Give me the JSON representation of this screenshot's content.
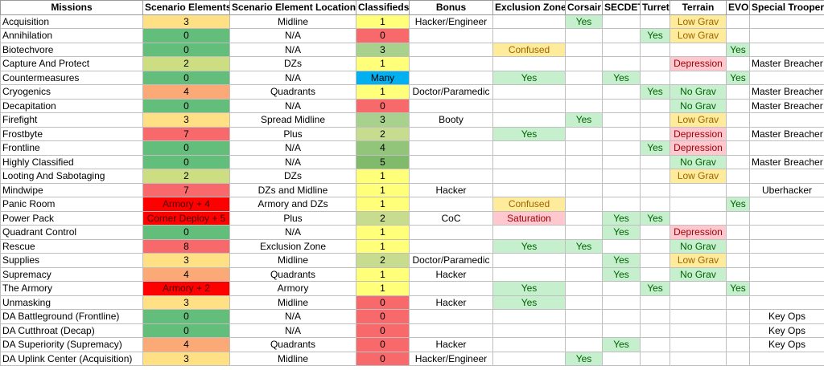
{
  "table": {
    "headers": [
      "Missions",
      "Scenario Elements",
      "Scenario Element Locations",
      "Classifieds",
      "Bonus",
      "Exclusion Zone",
      "Corsair",
      "SECDET",
      "Turret",
      "Terrain",
      "EVO",
      "Special Trooper"
    ],
    "rows": [
      [
        "Acquisition",
        "3",
        "Midline",
        "1",
        "Hacker/Engineer",
        "",
        "Yes",
        "",
        "",
        "Low Grav",
        "",
        ""
      ],
      [
        "Annihilation",
        "0",
        "N/A",
        "0",
        "",
        "",
        "",
        "",
        "Yes",
        "Low Grav",
        "",
        ""
      ],
      [
        "Biotechvore",
        "0",
        "N/A",
        "3",
        "",
        "Confused",
        "",
        "",
        "",
        "",
        "Yes",
        ""
      ],
      [
        "Capture And Protect",
        "2",
        "DZs",
        "1",
        "",
        "",
        "",
        "",
        "",
        "Depression",
        "",
        "Master Breacher"
      ],
      [
        "Countermeasures",
        "0",
        "N/A",
        "Many",
        "",
        "Yes",
        "",
        "Yes",
        "",
        "",
        "Yes",
        ""
      ],
      [
        "Cryogenics",
        "4",
        "Quadrants",
        "1",
        "Doctor/Paramedic",
        "",
        "",
        "",
        "Yes",
        "No Grav",
        "",
        "Master Breacher"
      ],
      [
        "Decapitation",
        "0",
        "N/A",
        "0",
        "",
        "",
        "",
        "",
        "",
        "No Grav",
        "",
        "Master Breacher"
      ],
      [
        "Firefight",
        "3",
        "Spread Midline",
        "3",
        "Booty",
        "",
        "Yes",
        "",
        "",
        "Low Grav",
        "",
        ""
      ],
      [
        "Frostbyte",
        "7",
        "Plus",
        "2",
        "",
        "Yes",
        "",
        "",
        "",
        "Depression",
        "",
        "Master Breacher"
      ],
      [
        "Frontline",
        "0",
        "N/A",
        "4",
        "",
        "",
        "",
        "",
        "Yes",
        "Depression",
        "",
        ""
      ],
      [
        "Highly Classified",
        "0",
        "N/A",
        "5",
        "",
        "",
        "",
        "",
        "",
        "No Grav",
        "",
        "Master Breacher"
      ],
      [
        "Looting And Sabotaging",
        "2",
        "DZs",
        "1",
        "",
        "",
        "",
        "",
        "",
        "Low Grav",
        "",
        ""
      ],
      [
        "Mindwipe",
        "7",
        "DZs and Midline",
        "1",
        "Hacker",
        "",
        "",
        "",
        "",
        "",
        "",
        "Uberhacker"
      ],
      [
        "Panic Room",
        "Armory + 4",
        "Armory and DZs",
        "1",
        "",
        "Confused",
        "",
        "",
        "",
        "",
        "Yes",
        ""
      ],
      [
        "Power Pack",
        "Corner Deploy + 5",
        "Plus",
        "2",
        "CoC",
        "Saturation",
        "",
        "Yes",
        "Yes",
        "",
        "",
        ""
      ],
      [
        "Quadrant Control",
        "0",
        "N/A",
        "1",
        "",
        "",
        "",
        "Yes",
        "",
        "Depression",
        "",
        ""
      ],
      [
        "Rescue",
        "8",
        "Exclusion Zone",
        "1",
        "",
        "Yes",
        "Yes",
        "",
        "",
        "No Grav",
        "",
        ""
      ],
      [
        "Supplies",
        "3",
        "Midline",
        "2",
        "Doctor/Paramedic",
        "",
        "",
        "Yes",
        "",
        "Low Grav",
        "",
        ""
      ],
      [
        "Supremacy",
        "4",
        "Quadrants",
        "1",
        "Hacker",
        "",
        "",
        "Yes",
        "",
        "No Grav",
        "",
        ""
      ],
      [
        "The Armory",
        "Armory + 2",
        "Armory",
        "1",
        "",
        "Yes",
        "",
        "",
        "Yes",
        "",
        "Yes",
        ""
      ],
      [
        "Unmasking",
        "3",
        "Midline",
        "0",
        "Hacker",
        "Yes",
        "",
        "",
        "",
        "",
        "",
        ""
      ],
      [
        "DA Battleground (Frontline)",
        "0",
        "N/A",
        "0",
        "",
        "",
        "",
        "",
        "",
        "",
        "",
        "Key Ops"
      ],
      [
        "DA Cutthroat (Decap)",
        "0",
        "N/A",
        "0",
        "",
        "",
        "",
        "",
        "",
        "",
        "",
        "Key Ops"
      ],
      [
        "DA Superiority (Supremacy)",
        "4",
        "Quadrants",
        "0",
        "Hacker",
        "",
        "",
        "Yes",
        "",
        "",
        "",
        "Key Ops"
      ],
      [
        "DA Uplink Center (Acquisition)",
        "3",
        "Midline",
        "0",
        "Hacker/Engineer",
        "",
        "Yes",
        "",
        "",
        "",
        "",
        ""
      ]
    ]
  },
  "colors": {
    "red": "#ff0000",
    "salmon": "#f8696b",
    "orange": "#fbaa77",
    "yellow": "#ffe084",
    "lime": "#cddd82",
    "green": "#63be7b",
    "blue": "#00b0f0",
    "good_fill": "#c6efce",
    "neutral_fill": "#ffeb9c",
    "bad_fill": "#ffc7ce"
  }
}
